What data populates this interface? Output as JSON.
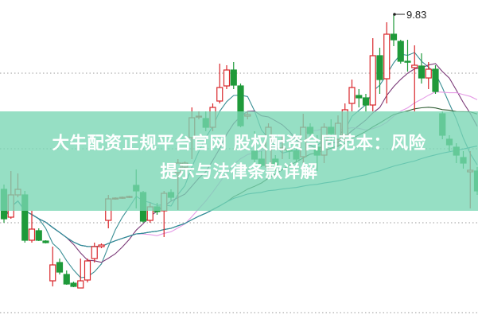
{
  "chart_data": {
    "type": "candlestick",
    "title": "",
    "ylim": [
      6.0,
      10.01
    ],
    "grid": "horizontal-dotted",
    "up_color": "#d9262a",
    "down_color": "#1f9a3a",
    "max_annotation": "9.83",
    "candles": [
      [
        7.63,
        7.26,
        7.69,
        7.21
      ],
      [
        7.28,
        7.56,
        7.86,
        7.26
      ],
      [
        7.56,
        7.63,
        7.83,
        7.53
      ],
      [
        7.56,
        6.99,
        7.61,
        6.96
      ],
      [
        6.99,
        7.13,
        7.36,
        6.96
      ],
      [
        7.11,
        6.99,
        7.14,
        6.98
      ],
      [
        6.98,
        6.96,
        6.99,
        6.95
      ],
      [
        6.48,
        6.68,
        6.91,
        6.41
      ],
      [
        6.71,
        6.59,
        6.76,
        6.56
      ],
      [
        6.56,
        6.44,
        6.61,
        6.43
      ],
      [
        6.45,
        6.41,
        6.47,
        6.4
      ],
      [
        6.39,
        6.48,
        6.76,
        6.39
      ],
      [
        6.49,
        6.73,
        6.76,
        6.46
      ],
      [
        6.76,
        6.91,
        6.96,
        6.71
      ],
      [
        6.91,
        6.93,
        6.95,
        6.89
      ],
      [
        7.24,
        7.51,
        7.56,
        7.14
      ],
      [
        7.51,
        7.52,
        7.53,
        7.5
      ],
      [
        7.52,
        7.53,
        7.54,
        7.51
      ],
      [
        7.53,
        7.54,
        7.55,
        7.52
      ],
      [
        7.68,
        7.61,
        7.88,
        7.39
      ],
      [
        7.59,
        7.23,
        7.61,
        7.21
      ],
      [
        7.24,
        7.41,
        7.46,
        7.21
      ],
      [
        7.41,
        7.35,
        7.46,
        7.31
      ],
      [
        7.36,
        7.58,
        7.61,
        7.03
      ],
      [
        7.59,
        7.53,
        7.63,
        7.49
      ],
      [
        7.84,
        7.96,
        8.01,
        7.37
      ],
      [
        7.91,
        7.96,
        7.98,
        7.89
      ],
      [
        8.28,
        8.53,
        8.66,
        8.01
      ],
      [
        8.54,
        8.55,
        8.61,
        8.51
      ],
      [
        8.52,
        8.41,
        8.61,
        8.36
      ],
      [
        8.41,
        8.66,
        8.71,
        8.36
      ],
      [
        8.74,
        8.91,
        9.21,
        8.71
      ],
      [
        8.93,
        9.13,
        9.19,
        8.89
      ],
      [
        9.13,
        8.94,
        9.23,
        8.89
      ],
      [
        8.93,
        8.43,
        8.96,
        8.41
      ],
      [
        8.55,
        8.57,
        8.61,
        8.51
      ],
      [
        8.11,
        8.01,
        8.36,
        7.96
      ],
      [
        8.01,
        7.93,
        8.11,
        7.91
      ],
      [
        7.91,
        8.41,
        8.46,
        7.86
      ],
      [
        8.01,
        7.93,
        8.06,
        7.86
      ],
      [
        8.13,
        8.15,
        8.31,
        8.01
      ],
      [
        8.13,
        8.11,
        8.21,
        8.01
      ],
      [
        8.11,
        8.01,
        8.16,
        7.96
      ],
      [
        8.04,
        8.41,
        8.58,
        7.96
      ],
      [
        8.41,
        8.33,
        8.46,
        8.26
      ],
      [
        8.16,
        8.06,
        8.31,
        7.86
      ],
      [
        8.06,
        8.41,
        8.46,
        7.96
      ],
      [
        8.41,
        8.33,
        8.51,
        8.21
      ],
      [
        8.26,
        8.46,
        8.56,
        8.16
      ],
      [
        8.31,
        8.63,
        8.71,
        8.23
      ],
      [
        8.71,
        8.91,
        9.01,
        8.61
      ],
      [
        8.81,
        8.78,
        8.89,
        8.66
      ],
      [
        8.78,
        8.69,
        8.83,
        8.61
      ],
      [
        8.69,
        9.31,
        9.53,
        8.61
      ],
      [
        9.31,
        9.01,
        9.41,
        8.83
      ],
      [
        9.02,
        9.58,
        9.73,
        8.71
      ],
      [
        9.58,
        9.51,
        9.83,
        9.43
      ],
      [
        9.49,
        9.24,
        9.51,
        9.21
      ],
      [
        9.24,
        9.23,
        9.51,
        9.11
      ],
      [
        9.16,
        9.19,
        9.44,
        8.61
      ],
      [
        9.18,
        9.03,
        9.34,
        8.96
      ],
      [
        9.03,
        9.14,
        9.23,
        8.89
      ],
      [
        9.14,
        8.86,
        9.19,
        8.83
      ],
      [
        8.58,
        8.31,
        8.61,
        8.26
      ],
      [
        8.26,
        8.19,
        8.31,
        8.11
      ],
      [
        8.16,
        8.06,
        8.21,
        7.96
      ],
      [
        8.03,
        7.96,
        8.11,
        7.89
      ],
      [
        7.85,
        7.87,
        8.11,
        7.39
      ],
      [
        7.86,
        7.61,
        7.91,
        7.56
      ]
    ],
    "candle_fields": [
      "open",
      "close",
      "high",
      "low"
    ],
    "moving_averages": [
      {
        "period": 5,
        "color": "#3a8f95"
      },
      {
        "period": 10,
        "color": "#7b3a78"
      },
      {
        "period": 20,
        "color": "#e59ae6"
      },
      {
        "period": 30,
        "color": "#2f5d33"
      },
      {
        "period": 60,
        "color": "#2b8ea0"
      }
    ],
    "gridlines": [
      9.09,
      8.14,
      7.21,
      6.08
    ]
  },
  "banner": {
    "line1": "大牛配资正规平台官网 股权配资合同范本：风险",
    "line2": "提示与法律条款详解",
    "color": "#78d6b4"
  }
}
